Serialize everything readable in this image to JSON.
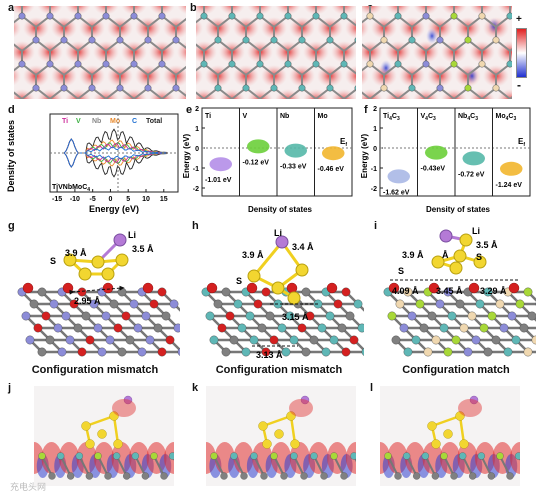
{
  "figure": {
    "panel_labels": [
      "a",
      "b",
      "c",
      "d",
      "e",
      "f",
      "g",
      "h",
      "i",
      "j",
      "k",
      "l"
    ],
    "colorbar": {
      "plus": "+",
      "minus": "-"
    },
    "colors": {
      "red": "#e03a3a",
      "blue": "#3a4fd8",
      "teal": "#5fb7b6",
      "grey": "#777777",
      "yellow": "#f0d020",
      "purple": "#b47ad6"
    }
  },
  "dos_total": {
    "legend": [
      "Ti",
      "V",
      "Nb",
      "Mo",
      "C",
      "Total"
    ],
    "legend_colors": [
      "#cc2b9a",
      "#3cb043",
      "#888888",
      "#e88a2e",
      "#1f6fd1",
      "#222222"
    ],
    "ylabel": "Density of states",
    "xlabel": "Energy (eV)",
    "xticks": [
      "-15",
      "-10",
      "-5",
      "0",
      "5",
      "10",
      "15"
    ],
    "compound": "TiVNbMoC",
    "compound_sub": "4"
  },
  "panel_e": {
    "ylabel": "Energy (eV)",
    "xlabel": "Density of states",
    "yticks": [
      "2",
      "1",
      "0",
      "-1",
      "-2"
    ],
    "fermi": "E",
    "fermi_sub": "f",
    "columns": [
      {
        "name": "Ti",
        "value": "-1.01 eV",
        "color": "#b48ee8"
      },
      {
        "name": "V",
        "value": "-0.12 eV",
        "color": "#6ccf3a"
      },
      {
        "name": "Nb",
        "value": "-0.33 eV",
        "color": "#55b8a8"
      },
      {
        "name": "Mo",
        "value": "-0.46 eV",
        "color": "#f2b62e"
      }
    ]
  },
  "panel_f": {
    "ylabel": "Energy (eV)",
    "xlabel": "Density of states",
    "yticks": [
      "2",
      "1",
      "0",
      "-1",
      "-2"
    ],
    "fermi": "E",
    "fermi_sub": "f",
    "columns": [
      {
        "name": "Ti",
        "sub1": "4",
        "tail": "C",
        "sub2": "3",
        "value": "-1.62 eV",
        "color": "#aab8e6"
      },
      {
        "name": "V",
        "sub1": "4",
        "tail": "C",
        "sub2": "3",
        "value": "-0.43eV",
        "color": "#6ccf3a"
      },
      {
        "name": "Nb",
        "sub1": "4",
        "tail": "C",
        "sub2": "3",
        "value": "-0.72 eV",
        "color": "#55b8a8"
      },
      {
        "name": "Mo",
        "sub1": "4",
        "tail": "C",
        "sub2": "3",
        "value": "-1.24 eV",
        "color": "#f2b62e"
      }
    ]
  },
  "panel_g": {
    "li": "Li",
    "s": "S",
    "d1": "3.9 Å",
    "d2": "3.5 Å",
    "d3": "2.95 Å",
    "caption": "Configuration mismatch"
  },
  "panel_h": {
    "li": "Li",
    "s": "S",
    "d1": "3.9 Å",
    "d2": "3.4 Å",
    "d3": "3.15 Å",
    "d4": "3.13 Å",
    "caption": "Configuration mismatch"
  },
  "panel_i": {
    "li": "Li",
    "s1": "S",
    "s2": "S",
    "d1": "3.5 Å",
    "d2": "3.9 Å",
    "d3": "Å",
    "d4": "4.09 Å",
    "d5": "3.45 Å",
    "d6": "3.29 Å",
    "caption": "Configuration match"
  },
  "watermark": "充电头网"
}
